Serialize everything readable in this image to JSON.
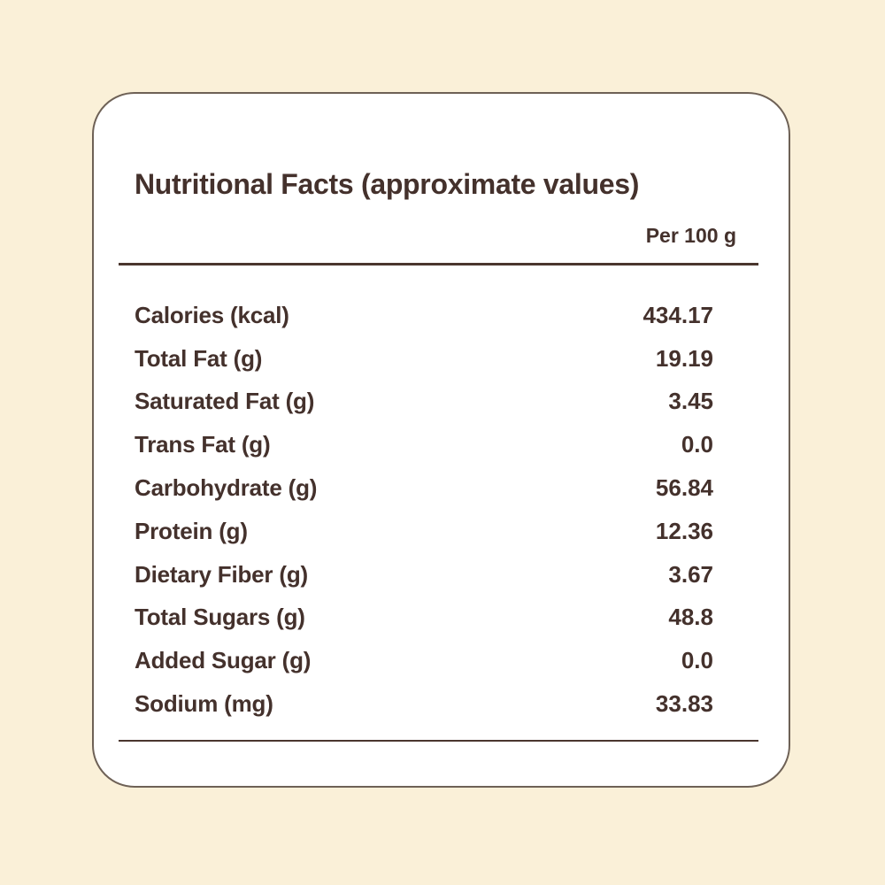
{
  "colors": {
    "background": "#faf0d8",
    "card": "#ffffff",
    "border": "#6e6156",
    "text": "#44312c",
    "rule": "#4a362e"
  },
  "header": {
    "title": "Nutritional Facts (approximate values)",
    "column_label": "Per 100 g"
  },
  "table": {
    "rows": [
      {
        "label": "Calories (kcal)",
        "value": "434.17"
      },
      {
        "label": "Total Fat (g)",
        "value": "19.19"
      },
      {
        "label": "Saturated Fat (g)",
        "value": "3.45"
      },
      {
        "label": "Trans Fat (g)",
        "value": "0.0"
      },
      {
        "label": "Carbohydrate (g)",
        "value": "56.84"
      },
      {
        "label": "Protein (g)",
        "value": "12.36"
      },
      {
        "label": "Dietary Fiber (g)",
        "value": "3.67"
      },
      {
        "label": "Total Sugars (g)",
        "value": "48.8"
      },
      {
        "label": "Added Sugar (g)",
        "value": "0.0"
      },
      {
        "label": "Sodium (mg)",
        "value": "33.83"
      }
    ]
  }
}
